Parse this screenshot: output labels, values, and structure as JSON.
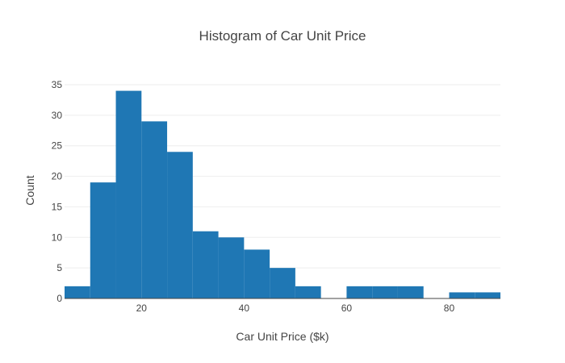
{
  "chart_data": {
    "type": "bar",
    "title": "Histogram of Car Unit Price",
    "xlabel": "Car Unit Price ($k)",
    "ylabel": "Count",
    "bin_width": 5,
    "bins": [
      {
        "start": 5,
        "end": 10,
        "count": 2
      },
      {
        "start": 10,
        "end": 15,
        "count": 19
      },
      {
        "start": 15,
        "end": 20,
        "count": 34
      },
      {
        "start": 20,
        "end": 25,
        "count": 29
      },
      {
        "start": 25,
        "end": 30,
        "count": 24
      },
      {
        "start": 30,
        "end": 35,
        "count": 11
      },
      {
        "start": 35,
        "end": 40,
        "count": 10
      },
      {
        "start": 40,
        "end": 45,
        "count": 8
      },
      {
        "start": 45,
        "end": 50,
        "count": 5
      },
      {
        "start": 50,
        "end": 55,
        "count": 2
      },
      {
        "start": 55,
        "end": 60,
        "count": 0
      },
      {
        "start": 60,
        "end": 65,
        "count": 2
      },
      {
        "start": 65,
        "end": 70,
        "count": 2
      },
      {
        "start": 70,
        "end": 75,
        "count": 2
      },
      {
        "start": 75,
        "end": 80,
        "count": 0
      },
      {
        "start": 80,
        "end": 85,
        "count": 1
      },
      {
        "start": 85,
        "end": 90,
        "count": 1
      }
    ],
    "xlim": [
      5,
      90
    ],
    "ylim": [
      0,
      35
    ],
    "x_ticks": [
      20,
      40,
      60,
      80
    ],
    "y_ticks": [
      0,
      5,
      10,
      15,
      20,
      25,
      30,
      35
    ],
    "bar_color": "#1f77b4",
    "grid": true
  }
}
